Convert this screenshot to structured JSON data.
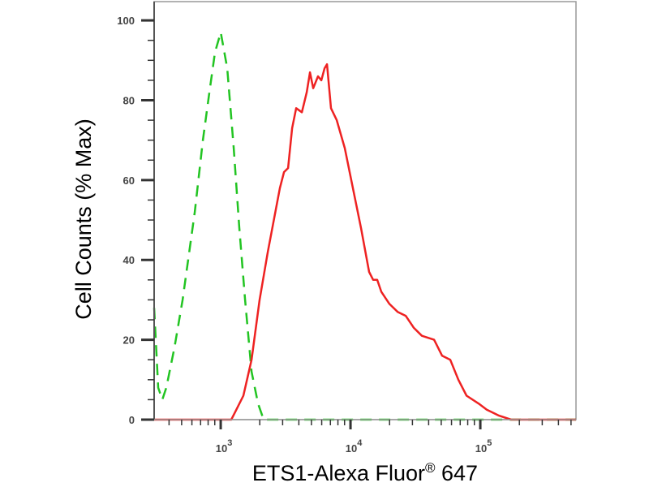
{
  "chart_data": {
    "type": "line",
    "title": "",
    "xlabel": "ETS1-Alexa Fluor® 647",
    "ylabel": "Cell Counts (% Max)",
    "xscale": "log",
    "xlim": [
      307,
      546000
    ],
    "ylim": [
      0,
      104.7
    ],
    "yticks": [
      0,
      20,
      40,
      60,
      80,
      100
    ],
    "ytick_labels": [
      "0",
      "20",
      "40",
      "60",
      "80",
      "100"
    ],
    "xticks": [
      1000,
      10000,
      100000
    ],
    "xtick_labels": [
      {
        "base": "10",
        "exp": "3"
      },
      {
        "base": "10",
        "exp": "4"
      },
      {
        "base": "10",
        "exp": "5"
      }
    ],
    "grid": false,
    "legend": "none",
    "series": [
      {
        "color": "#22c422",
        "style": "dashed",
        "x": [
          307,
          330,
          355,
          381,
          440,
          509,
          631,
          729,
          818,
          904,
          1000,
          1122,
          1259,
          1392,
          1540,
          1728,
          1939,
          2143,
          546000
        ],
        "y": [
          28,
          8,
          5,
          8,
          18,
          30,
          52,
          70,
          82,
          92,
          97,
          88,
          68,
          48,
          30,
          12,
          4,
          0,
          0
        ]
      },
      {
        "color": "#ee2222",
        "style": "solid",
        "x": [
          307,
          1206,
          1296,
          1496,
          1728,
          1995,
          2304,
          2858,
          3073,
          3303,
          3548,
          3813,
          4217,
          4597,
          4870,
          5158,
          5623,
          5957,
          6310,
          6592,
          7079,
          7830,
          9036,
          10440,
          12050,
          13920,
          14960,
          16070,
          17280,
          19950,
          23040,
          26610,
          30730,
          35480,
          44040,
          50840,
          58680,
          67760,
          78300,
          97170,
          112200,
          139300,
          172800,
          546000
        ],
        "y": [
          0,
          0,
          2,
          6,
          15,
          30,
          42,
          58,
          62,
          63,
          73,
          78,
          77,
          82,
          87,
          83,
          86,
          85,
          88,
          89,
          78,
          75,
          68,
          58,
          48,
          37,
          35,
          35,
          32,
          29,
          27,
          26,
          23,
          21,
          20,
          16,
          15,
          10,
          6,
          4,
          2.5,
          1,
          0,
          0
        ]
      }
    ]
  }
}
